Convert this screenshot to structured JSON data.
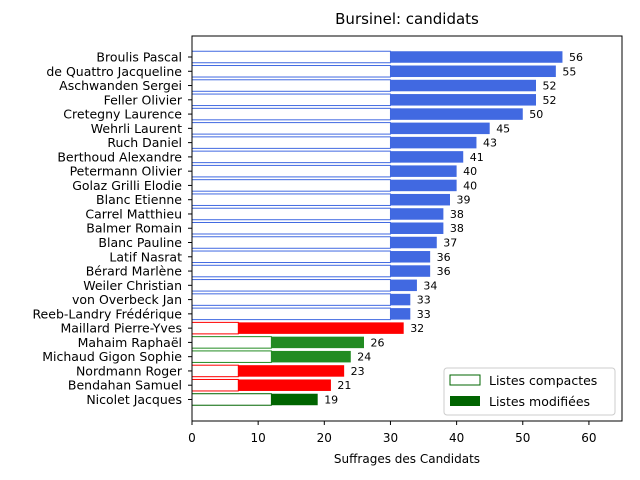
{
  "chart_data": {
    "type": "bar",
    "orientation": "horizontal",
    "stacked": true,
    "title": "Bursinel: candidats",
    "xlabel": "Suffrages des Candidats",
    "ylabel": "",
    "xlim": [
      0,
      65
    ],
    "xticks": [
      0,
      10,
      20,
      30,
      40,
      50,
      60
    ],
    "grid": false,
    "legend_position": "bottom-right",
    "legend": [
      {
        "label": "Listes compactes",
        "style": "outline",
        "color": "#006400"
      },
      {
        "label": "Listes modifiées",
        "style": "filled",
        "color": "#006400"
      }
    ],
    "candidates": [
      {
        "name": "Broulis Pascal",
        "compact": 30,
        "modified": 26,
        "total": 56,
        "color": "#4169e1"
      },
      {
        "name": "de Quattro Jacqueline",
        "compact": 30,
        "modified": 25,
        "total": 55,
        "color": "#4169e1"
      },
      {
        "name": "Aschwanden Sergei",
        "compact": 30,
        "modified": 22,
        "total": 52,
        "color": "#4169e1"
      },
      {
        "name": "Feller Olivier",
        "compact": 30,
        "modified": 22,
        "total": 52,
        "color": "#4169e1"
      },
      {
        "name": "Cretegny Laurence",
        "compact": 30,
        "modified": 20,
        "total": 50,
        "color": "#4169e1"
      },
      {
        "name": "Wehrli Laurent",
        "compact": 30,
        "modified": 15,
        "total": 45,
        "color": "#4169e1"
      },
      {
        "name": "Ruch Daniel",
        "compact": 30,
        "modified": 13,
        "total": 43,
        "color": "#4169e1"
      },
      {
        "name": "Berthoud Alexandre",
        "compact": 30,
        "modified": 11,
        "total": 41,
        "color": "#4169e1"
      },
      {
        "name": "Petermann Olivier",
        "compact": 30,
        "modified": 10,
        "total": 40,
        "color": "#4169e1"
      },
      {
        "name": "Golaz Grilli Elodie",
        "compact": 30,
        "modified": 10,
        "total": 40,
        "color": "#4169e1"
      },
      {
        "name": "Blanc Etienne",
        "compact": 30,
        "modified": 9,
        "total": 39,
        "color": "#4169e1"
      },
      {
        "name": "Carrel Matthieu",
        "compact": 30,
        "modified": 8,
        "total": 38,
        "color": "#4169e1"
      },
      {
        "name": "Balmer Romain",
        "compact": 30,
        "modified": 8,
        "total": 38,
        "color": "#4169e1"
      },
      {
        "name": "Blanc Pauline",
        "compact": 30,
        "modified": 7,
        "total": 37,
        "color": "#4169e1"
      },
      {
        "name": "Latif Nasrat",
        "compact": 30,
        "modified": 6,
        "total": 36,
        "color": "#4169e1"
      },
      {
        "name": "Bérard Marlène",
        "compact": 30,
        "modified": 6,
        "total": 36,
        "color": "#4169e1"
      },
      {
        "name": "Weiler Christian",
        "compact": 30,
        "modified": 4,
        "total": 34,
        "color": "#4169e1"
      },
      {
        "name": "von Overbeck Jan",
        "compact": 30,
        "modified": 3,
        "total": 33,
        "color": "#4169e1"
      },
      {
        "name": "Reeb-Landry Frédérique",
        "compact": 30,
        "modified": 3,
        "total": 33,
        "color": "#4169e1"
      },
      {
        "name": "Maillard Pierre-Yves",
        "compact": 7,
        "modified": 25,
        "total": 32,
        "color": "#ff0000"
      },
      {
        "name": "Mahaim Raphaël",
        "compact": 12,
        "modified": 14,
        "total": 26,
        "color": "#228b22"
      },
      {
        "name": "Michaud Gigon Sophie",
        "compact": 12,
        "modified": 12,
        "total": 24,
        "color": "#228b22"
      },
      {
        "name": "Nordmann Roger",
        "compact": 7,
        "modified": 16,
        "total": 23,
        "color": "#ff0000"
      },
      {
        "name": "Bendahan Samuel",
        "compact": 7,
        "modified": 14,
        "total": 21,
        "color": "#ff0000"
      },
      {
        "name": "Nicolet Jacques",
        "compact": 12,
        "modified": 7,
        "total": 19,
        "color": "#006400"
      }
    ]
  }
}
